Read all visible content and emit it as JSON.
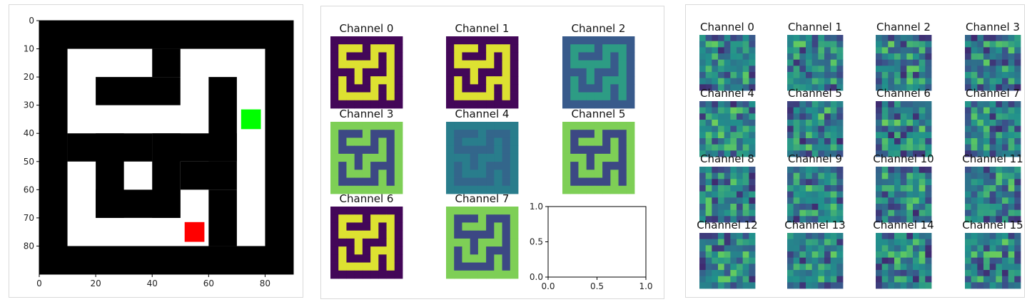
{
  "chart_data": [
    {
      "type": "heatmap",
      "description_role": "maze grid image",
      "xlim": [
        0,
        90
      ],
      "ylim": [
        0,
        90
      ],
      "x_ticks": [
        "0",
        "20",
        "40",
        "60",
        "80"
      ],
      "y_ticks": [
        "0",
        "10",
        "20",
        "30",
        "40",
        "50",
        "60",
        "70",
        "80"
      ],
      "colors": {
        "wall": "#000000",
        "path": "#ffffff",
        "start": "#00ff00",
        "goal": "#ff0000"
      },
      "start_marker": {
        "x": 75,
        "y": 35
      },
      "goal_marker": {
        "x": 55,
        "y": 75
      }
    },
    {
      "type": "heatmap",
      "titles": [
        "Channel 0",
        "Channel 1",
        "Channel 2",
        "Channel 3",
        "Channel 4",
        "Channel 5",
        "Channel 6",
        "Channel 7"
      ],
      "colormap": "viridis",
      "empty_axes": {
        "x_ticks": [
          "0.0",
          "0.5",
          "1.0"
        ],
        "y_ticks": [
          "0.0",
          "0.5",
          "1.0"
        ],
        "xlim": [
          0,
          1
        ],
        "ylim": [
          0,
          1
        ]
      }
    },
    {
      "type": "heatmap",
      "titles": [
        "Channel 0",
        "Channel 1",
        "Channel 2",
        "Channel 3",
        "Channel 4",
        "Channel 5",
        "Channel 6",
        "Channel 7",
        "Channel 8",
        "Channel 9",
        "Channel 10",
        "Channel 11",
        "Channel 12",
        "Channel 13",
        "Channel 14",
        "Channel 15"
      ],
      "colormap": "viridis"
    }
  ]
}
